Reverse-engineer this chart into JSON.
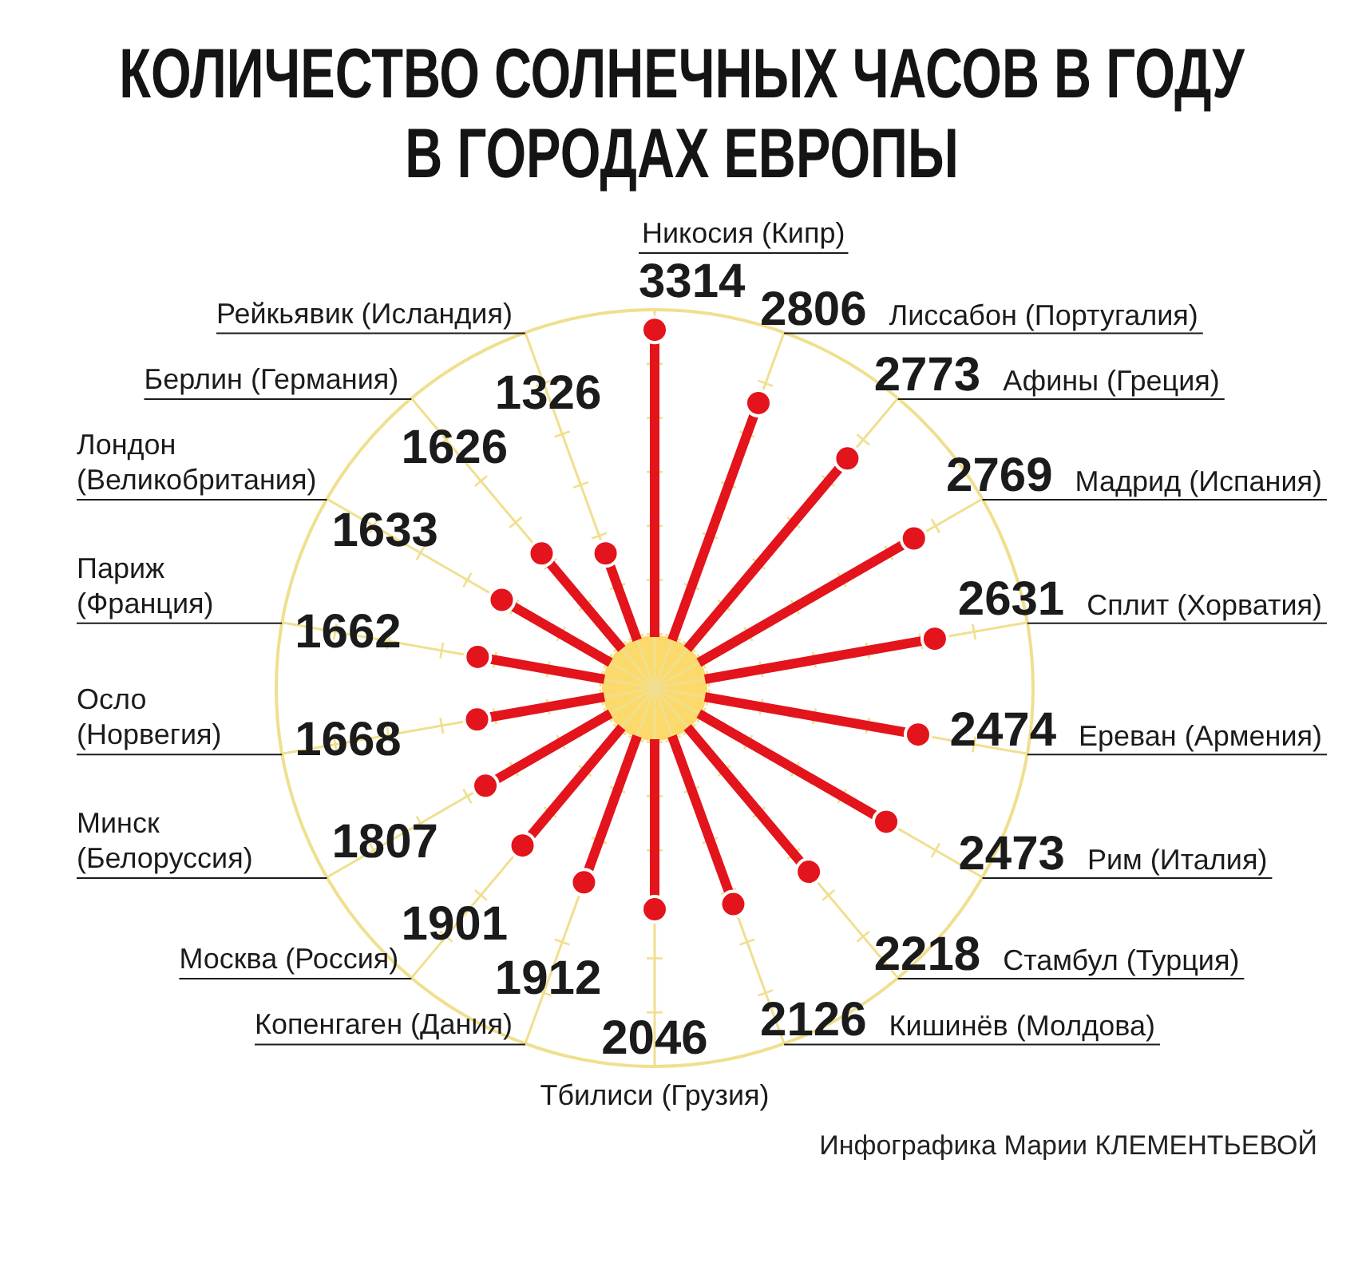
{
  "chart_data": {
    "type": "other",
    "title": "КОЛИЧЕСТВО СОЛНЕЧНЫХ ЧАСОВ В ГОДУ В ГОРОДАХ ЕВРОПЫ",
    "categories": [
      "Никосия (Кипр)",
      "Лиссабон (Португалия)",
      "Афины (Греция)",
      "Мадрид (Испания)",
      "Сплит (Хорватия)",
      "Ереван (Армения)",
      "Рим (Италия)",
      "Стамбул (Турция)",
      "Кишинёв (Молдова)",
      "Тбилиси (Грузия)",
      "Копенгаген (Дания)",
      "Москва (Россия)",
      "Минск (Белоруссия)",
      "Осло (Норвегия)",
      "Париж (Франция)",
      "Лондон (Великобритания)",
      "Берлин (Германия)",
      "Рейкьявик (Исландия)"
    ],
    "values": [
      3314,
      2806,
      2773,
      2769,
      2631,
      2474,
      2473,
      2218,
      2126,
      2046,
      1912,
      1901,
      1807,
      1668,
      1662,
      1633,
      1626,
      1326
    ],
    "color": "#e3141b",
    "data_labels": true,
    "annotations": [
      "Инфографика Марии КЛЕМЕНТЬЕВОЙ"
    ]
  }
}
